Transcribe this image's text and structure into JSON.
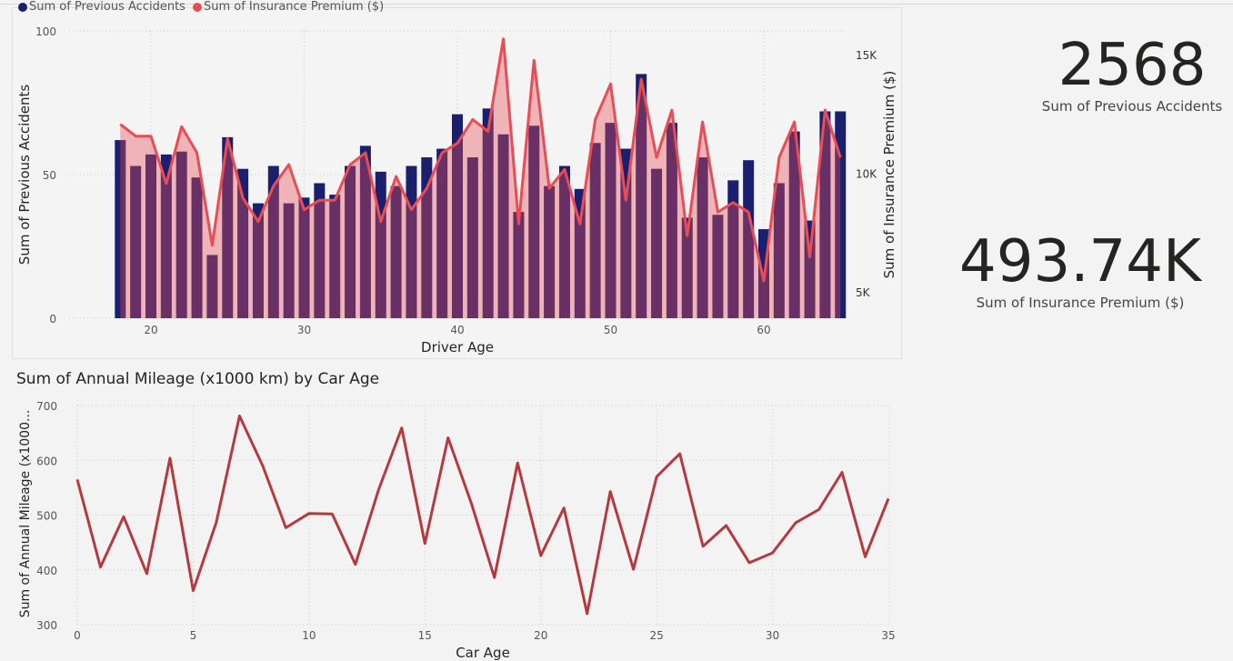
{
  "legend": {
    "items": [
      {
        "label": "Sum of Previous Accidents",
        "color": "#1a1f6e"
      },
      {
        "label": "Sum of Insurance Premium ($)",
        "color": "#e84d55"
      }
    ]
  },
  "kpis": {
    "accidents": {
      "value": "2568",
      "label": "Sum of Previous Accidents"
    },
    "premium": {
      "value": "493.74K",
      "label": "Sum of Insurance Premium ($)"
    }
  },
  "charts": {
    "combo": {
      "xlabel": "Driver Age",
      "ylabel_left": "Sum of Previous Accidents",
      "ylabel_right": "Sum of Insurance Premium ($)",
      "left_ticks": [
        "100",
        "50",
        "0"
      ],
      "right_ticks": [
        "15K",
        "10K",
        "5K"
      ],
      "x_ticks": [
        "20",
        "30",
        "40",
        "50",
        "60"
      ]
    },
    "line": {
      "title": "Sum of Annual Mileage (x1000 km) by Car Age",
      "xlabel": "Car Age",
      "ylabel": "Sum of Annual Mileage (x1000...",
      "y_ticks": [
        "700",
        "600",
        "500",
        "400",
        "300"
      ],
      "x_ticks": [
        "0",
        "5",
        "10",
        "15",
        "20",
        "25",
        "30",
        "35"
      ]
    }
  },
  "chart_data": [
    {
      "type": "bar",
      "title": "",
      "xlabel": "Driver Age",
      "ylabel": "Sum of Previous Accidents",
      "y2label": "Sum of Insurance Premium ($)",
      "ylim": [
        0,
        100
      ],
      "y2lim": [
        3000,
        16000
      ],
      "x": [
        18,
        19,
        20,
        21,
        22,
        23,
        24,
        25,
        26,
        27,
        28,
        29,
        30,
        31,
        32,
        33,
        34,
        35,
        36,
        37,
        38,
        39,
        40,
        41,
        42,
        43,
        44,
        45,
        46,
        47,
        48,
        49,
        50,
        51,
        52,
        53,
        54,
        55,
        56,
        57,
        58,
        59,
        60,
        61,
        62,
        63,
        64,
        65
      ],
      "series": [
        {
          "name": "Sum of Previous Accidents",
          "kind": "bar",
          "color": "#1a1f6e",
          "values": [
            62,
            53,
            57,
            57,
            58,
            49,
            22,
            63,
            52,
            40,
            53,
            40,
            42,
            47,
            43,
            53,
            60,
            51,
            46,
            53,
            56,
            59,
            71,
            56,
            73,
            64,
            37,
            67,
            46,
            53,
            45,
            61,
            68,
            59,
            85,
            52,
            68,
            35,
            56,
            36,
            48,
            55,
            31,
            47,
            65,
            34,
            72,
            72
          ]
        },
        {
          "name": "Sum of Insurance Premium ($)",
          "kind": "area",
          "color": "#e84d55",
          "values": [
            12100,
            11600,
            11600,
            9600,
            12000,
            10900,
            7000,
            11500,
            9000,
            8000,
            9500,
            10400,
            8500,
            8900,
            8900,
            10400,
            10900,
            8000,
            9900,
            8500,
            9400,
            10900,
            11300,
            12300,
            11800,
            15700,
            7900,
            14800,
            9400,
            10200,
            7900,
            12300,
            13800,
            8900,
            14000,
            10700,
            12700,
            7400,
            12200,
            8400,
            8800,
            8400,
            5500,
            10700,
            12200,
            6500,
            12700,
            10700
          ]
        }
      ]
    },
    {
      "type": "line",
      "title": "Sum of Annual Mileage (x1000 km) by Car Age",
      "xlabel": "Car Age",
      "ylabel": "Sum of Annual Mileage (x1000...",
      "ylim": [
        300,
        700
      ],
      "xlim": [
        0,
        35
      ],
      "x": [
        0,
        1,
        2,
        3,
        4,
        5,
        6,
        7,
        8,
        9,
        10,
        11,
        12,
        13,
        14,
        15,
        16,
        17,
        18,
        19,
        20,
        21,
        22,
        23,
        24,
        25,
        26,
        27,
        28,
        29,
        30,
        31,
        32,
        33,
        34,
        35
      ],
      "series": [
        {
          "name": "",
          "color": "#b53a3f",
          "values": [
            565,
            405,
            497,
            393,
            604,
            362,
            487,
            681,
            590,
            477,
            503,
            502,
            410,
            546,
            659,
            448,
            641,
            522,
            386,
            595,
            426,
            513,
            320,
            543,
            401,
            570,
            612,
            443,
            481,
            413,
            431,
            486,
            510,
            578,
            424,
            530
          ]
        }
      ]
    }
  ]
}
